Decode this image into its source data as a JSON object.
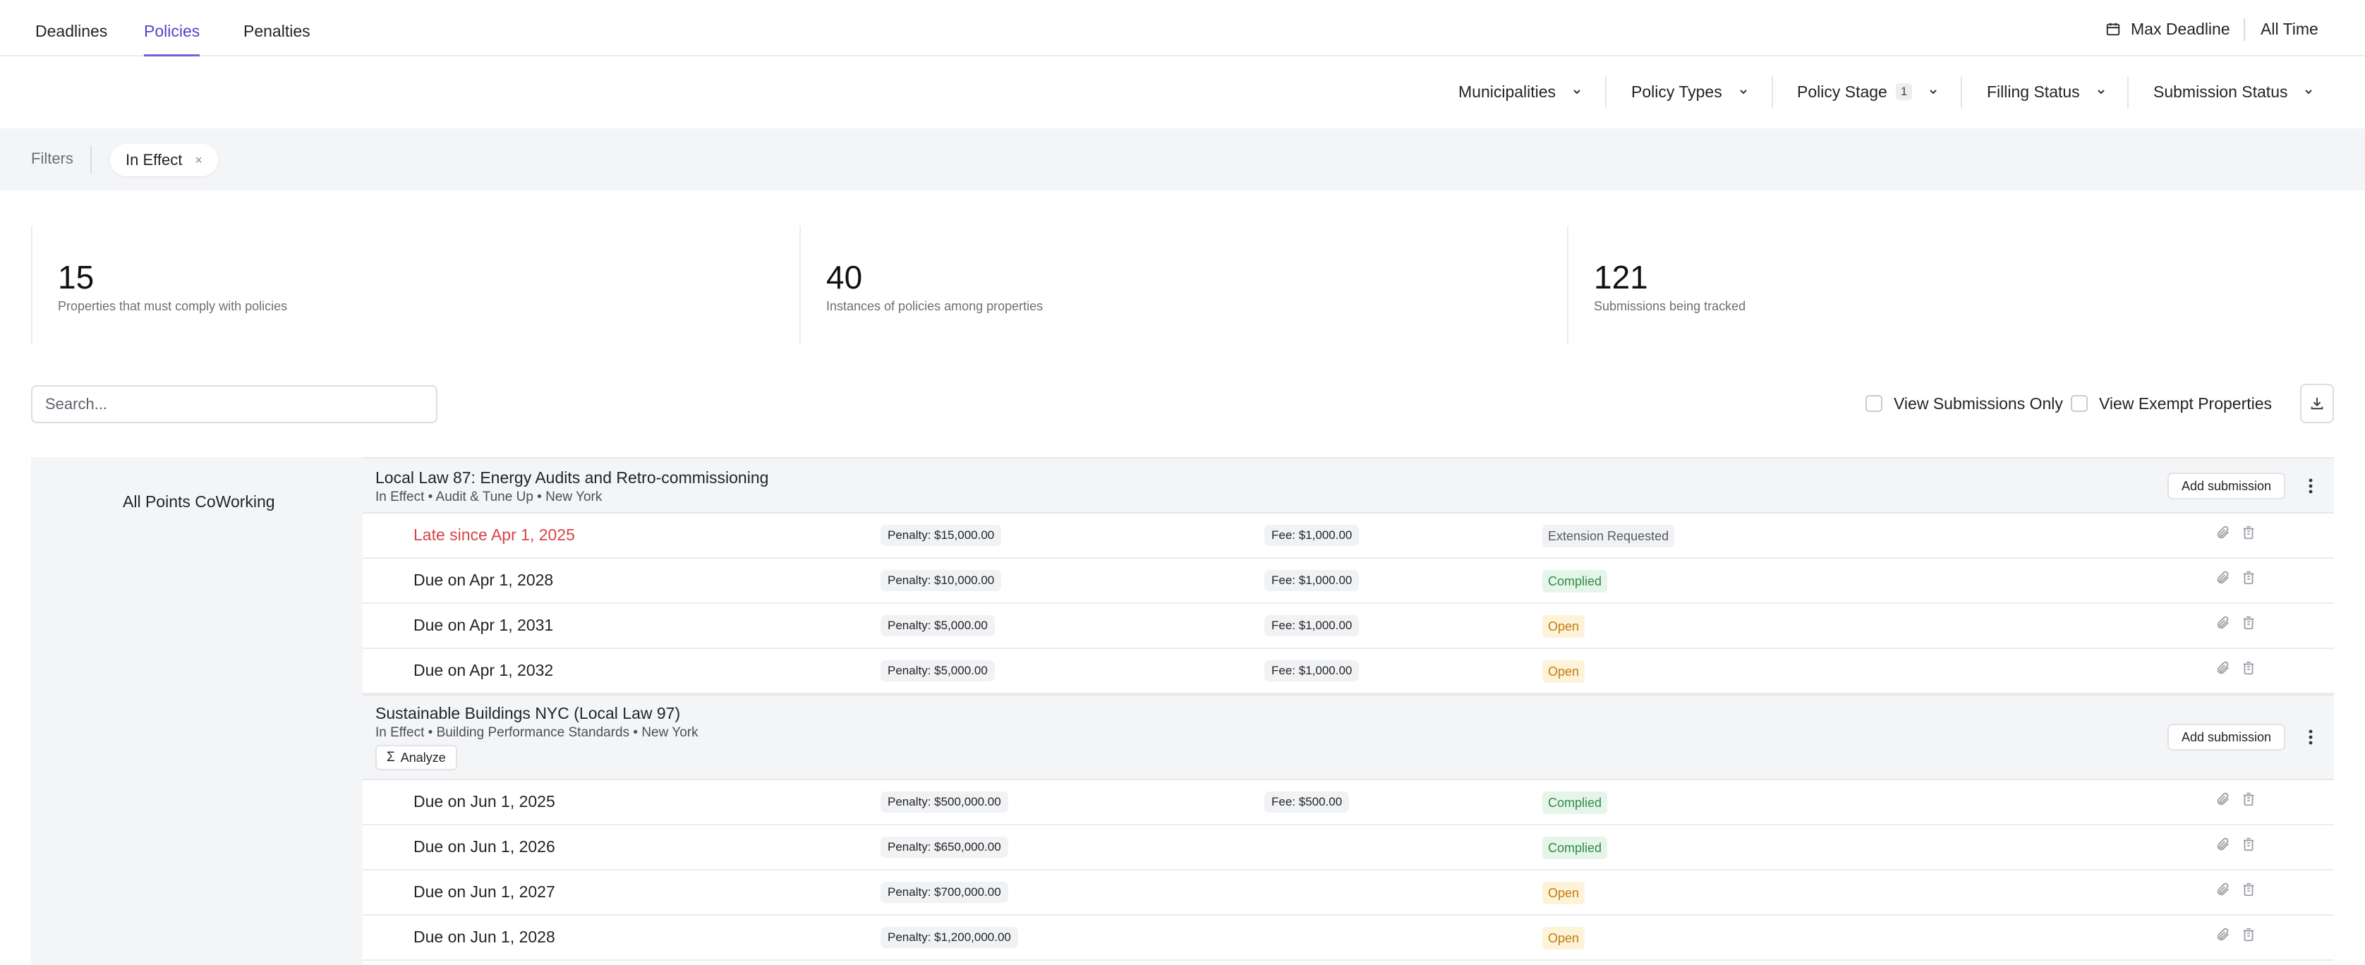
{
  "nav": {
    "tabs": [
      {
        "label": "Deadlines",
        "active": false
      },
      {
        "label": "Policies",
        "active": true
      },
      {
        "label": "Penalties",
        "active": false
      }
    ],
    "max_deadline": {
      "icon": "calendar-icon",
      "label": "Max Deadline"
    },
    "range": "All Time"
  },
  "dropdowns": [
    {
      "label": "Municipalities"
    },
    {
      "label": "Policy Types"
    },
    {
      "label": "Policy Stage",
      "count": "1"
    },
    {
      "label": "Filling Status"
    },
    {
      "label": "Submission Status"
    }
  ],
  "filters": {
    "label": "Filters",
    "chips": [
      {
        "label": "In Effect",
        "remove": "×"
      }
    ]
  },
  "stats": [
    {
      "value": "15",
      "label": "Properties that must comply with policies"
    },
    {
      "value": "40",
      "label": "Instances of policies among properties"
    },
    {
      "value": "121",
      "label": "Submissions being tracked"
    }
  ],
  "search": {
    "placeholder": "Search...",
    "value": ""
  },
  "toggles": {
    "submissions_only": "View Submissions Only",
    "exempt": "View Exempt Properties"
  },
  "property": {
    "name": "All Points CoWorking",
    "policies": [
      {
        "title": "Local Law 87: Energy Audits and Retro-commissioning",
        "subtitle": "In Effect • Audit & Tune Up • New York",
        "add_label": "Add submission",
        "rows": [
          {
            "due": "Late since Apr 1, 2025",
            "late": true,
            "penalty": "Penalty: $15,000.00",
            "fee": "Fee: $1,000.00",
            "status": "Extension Requested",
            "status_kind": "ext"
          },
          {
            "due": "Due on Apr 1, 2028",
            "late": false,
            "penalty": "Penalty: $10,000.00",
            "fee": "Fee: $1,000.00",
            "status": "Complied",
            "status_kind": "ok"
          },
          {
            "due": "Due on Apr 1, 2031",
            "late": false,
            "penalty": "Penalty: $5,000.00",
            "fee": "Fee: $1,000.00",
            "status": "Open",
            "status_kind": "open"
          },
          {
            "due": "Due on Apr 1, 2032",
            "late": false,
            "penalty": "Penalty: $5,000.00",
            "fee": "Fee: $1,000.00",
            "status": "Open",
            "status_kind": "open"
          }
        ]
      },
      {
        "title": "Sustainable Buildings NYC (Local Law 97)",
        "subtitle": "In Effect • Building Performance Standards • New York",
        "add_label": "Add submission",
        "analyze_label": "Analyze",
        "rows": [
          {
            "due": "Due on Jun 1, 2025",
            "late": false,
            "penalty": "Penalty: $500,000.00",
            "fee": "Fee: $500.00",
            "status": "Complied",
            "status_kind": "ok"
          },
          {
            "due": "Due on Jun 1, 2026",
            "late": false,
            "penalty": "Penalty: $650,000.00",
            "fee": "",
            "status": "Complied",
            "status_kind": "ok"
          },
          {
            "due": "Due on Jun 1, 2027",
            "late": false,
            "penalty": "Penalty: $700,000.00",
            "fee": "",
            "status": "Open",
            "status_kind": "open"
          },
          {
            "due": "Due on Jun 1, 2028",
            "late": false,
            "penalty": "Penalty: $1,200,000.00",
            "fee": "",
            "status": "Open",
            "status_kind": "open"
          }
        ]
      }
    ]
  },
  "colors": {
    "accent": "#6d63d8",
    "late": "#d64545",
    "complied": "#2f8a46",
    "open": "#c47a10"
  }
}
